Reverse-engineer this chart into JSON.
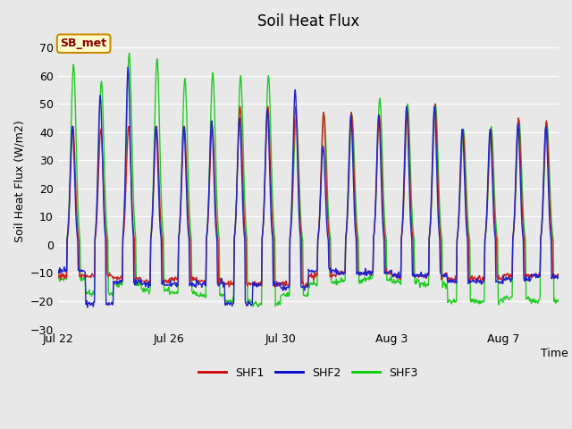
{
  "title": "Soil Heat Flux",
  "ylabel": "Soil Heat Flux (W/m2)",
  "xlabel": "Time",
  "ylim": [
    -30,
    75
  ],
  "yticks": [
    -30,
    -20,
    -10,
    0,
    10,
    20,
    30,
    40,
    50,
    60,
    70
  ],
  "fig_bg_color": "#e8e8e8",
  "plot_bg_color": "#e8e8e8",
  "legend_labels": [
    "SHF1",
    "SHF2",
    "SHF3"
  ],
  "legend_colors": [
    "#cc0000",
    "#0000cc",
    "#00cc00"
  ],
  "annotation_text": "SB_met",
  "annotation_color": "#8b0000",
  "annotation_bg": "#ffffcc",
  "annotation_border": "#cc8800",
  "line_colors": [
    "#cc2222",
    "#2222cc",
    "#22cc22"
  ],
  "line_width": 1.0,
  "n_days": 18,
  "pts_per_day": 48,
  "x_tick_labels": [
    "Jul 22",
    "Jul 26",
    "Jul 30",
    "Aug 3",
    "Aug 7"
  ],
  "x_tick_positions": [
    0,
    4,
    8,
    12,
    16
  ],
  "day_peaks_shf1": [
    42,
    41,
    42,
    42,
    42,
    42,
    49,
    49,
    49,
    47,
    47,
    46,
    48,
    50,
    41,
    41,
    45,
    44
  ],
  "day_peaks_shf2": [
    42,
    53,
    63,
    42,
    42,
    44,
    45,
    48,
    55,
    35,
    46,
    46,
    49,
    49,
    41,
    41,
    43,
    42
  ],
  "day_peaks_shf3": [
    64,
    58,
    68,
    66,
    59,
    61,
    60,
    60,
    45,
    46,
    46,
    52,
    50,
    50,
    41,
    42,
    44,
    43
  ],
  "day_troughs_shf1": [
    -11,
    -11,
    -12,
    -13,
    -12,
    -13,
    -14,
    -14,
    -14,
    -11,
    -10,
    -10,
    -11,
    -11,
    -12,
    -12,
    -11,
    -11
  ],
  "day_troughs_shf2": [
    -9,
    -21,
    -13,
    -14,
    -14,
    -14,
    -21,
    -14,
    -15,
    -9,
    -10,
    -10,
    -11,
    -11,
    -13,
    -13,
    -12,
    -11
  ],
  "day_troughs_shf3": [
    -12,
    -17,
    -14,
    -16,
    -17,
    -18,
    -20,
    -21,
    -18,
    -14,
    -13,
    -12,
    -13,
    -14,
    -20,
    -20,
    -19,
    -20
  ]
}
